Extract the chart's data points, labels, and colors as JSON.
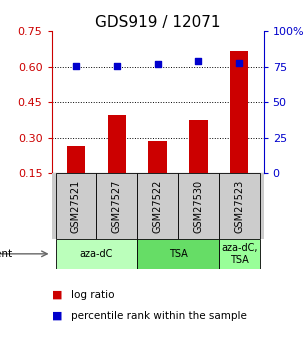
{
  "title": "GDS919 / 12071",
  "samples": [
    "GSM27521",
    "GSM27527",
    "GSM27522",
    "GSM27530",
    "GSM27523"
  ],
  "log_ratio": [
    0.265,
    0.395,
    0.285,
    0.375,
    0.665
  ],
  "percentile_rank": [
    0.755,
    0.758,
    0.77,
    0.793,
    0.775
  ],
  "agents": [
    {
      "label": "aza-dC",
      "start": 0,
      "end": 2,
      "color": "#bbffbb"
    },
    {
      "label": "TSA",
      "start": 2,
      "end": 4,
      "color": "#66dd66"
    },
    {
      "label": "aza-dC,\nTSA",
      "start": 4,
      "end": 5,
      "color": "#99ff99"
    }
  ],
  "bar_color": "#cc0000",
  "dot_color": "#0000cc",
  "left_ylim": [
    0.15,
    0.75
  ],
  "right_ylim": [
    0.0,
    1.0
  ],
  "left_yticks": [
    0.15,
    0.3,
    0.45,
    0.6,
    0.75
  ],
  "left_yticklabels": [
    "0.15",
    "0.30",
    "0.45",
    "0.60",
    "0.75"
  ],
  "right_yticks": [
    0.0,
    0.25,
    0.5,
    0.75,
    1.0
  ],
  "right_yticklabels": [
    "0",
    "25",
    "50",
    "75",
    "100%"
  ],
  "hlines": [
    0.3,
    0.45,
    0.6
  ],
  "title_fontsize": 11,
  "tick_fontsize": 8,
  "bar_width": 0.45,
  "dot_size": 25,
  "background_color": "#ffffff"
}
